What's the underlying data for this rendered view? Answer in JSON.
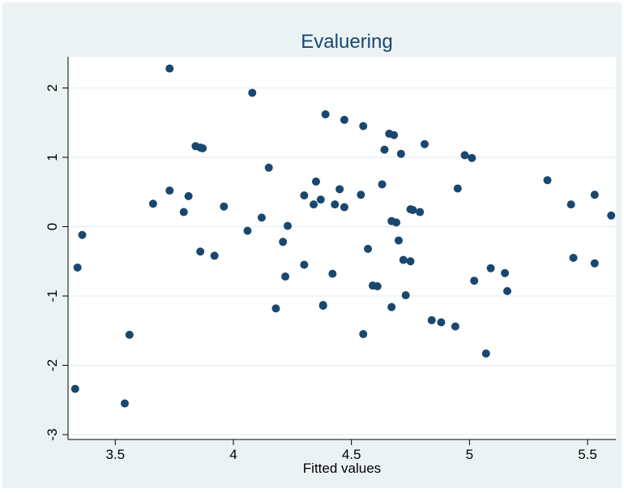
{
  "chart_data": {
    "type": "scatter",
    "title": "Evaluering",
    "xlabel": "Fitted values",
    "ylabel": "",
    "xlim": [
      3.3,
      5.62
    ],
    "ylim": [
      -3.07,
      2.45
    ],
    "xticks": [
      3.5,
      4,
      4.5,
      5,
      5.5
    ],
    "xtick_labels": [
      "3.5",
      "4",
      "4.5",
      "5",
      "5.5"
    ],
    "yticks": [
      -3,
      -2,
      -1,
      0,
      1,
      2
    ],
    "ytick_labels": [
      "-3",
      "-2",
      "-1",
      "0",
      "1",
      "2"
    ],
    "grid": true,
    "legend": "none",
    "colors": {
      "background": "#eaf2f3",
      "plot_background": "#ffffff",
      "marker": "#1a476f",
      "title": "#1a476f",
      "grid": "#eaf2f3"
    },
    "series": [
      {
        "x": [
          3.33,
          3.34,
          3.36,
          3.54,
          3.56,
          3.66,
          3.73,
          3.73,
          3.79,
          3.81,
          3.84,
          3.86,
          3.87,
          3.86,
          3.92,
          3.96,
          4.06,
          4.08,
          4.12,
          4.15,
          4.18,
          4.21,
          4.22,
          4.23,
          4.3,
          4.3,
          4.34,
          4.35,
          4.37,
          4.38,
          4.38,
          4.39,
          4.42,
          4.43,
          4.45,
          4.47,
          4.47,
          4.54,
          4.55,
          4.55,
          4.57,
          4.59,
          4.61,
          4.63,
          4.64,
          4.66,
          4.67,
          4.67,
          4.68,
          4.69,
          4.7,
          4.71,
          4.72,
          4.73,
          4.75,
          4.75,
          4.76,
          4.79,
          4.81,
          4.84,
          4.88,
          4.94,
          4.95,
          4.98,
          5.01,
          5.02,
          5.07,
          5.09,
          5.15,
          5.16,
          5.33,
          5.43,
          5.44,
          5.53,
          5.53,
          5.6
        ],
        "y": [
          -2.34,
          -0.59,
          -0.12,
          -2.55,
          -1.56,
          0.33,
          2.28,
          0.52,
          0.21,
          0.44,
          1.16,
          1.14,
          1.13,
          -0.36,
          -0.42,
          0.29,
          -0.06,
          1.93,
          0.13,
          0.85,
          -1.18,
          -0.22,
          -0.72,
          0.01,
          0.45,
          -0.55,
          0.32,
          0.65,
          0.39,
          -1.13,
          -1.14,
          1.62,
          -0.68,
          0.32,
          0.54,
          0.28,
          1.54,
          0.46,
          1.45,
          -1.55,
          -0.32,
          -0.85,
          -0.86,
          0.61,
          1.11,
          1.34,
          0.08,
          -1.16,
          1.32,
          0.06,
          -0.2,
          1.05,
          -0.48,
          -0.99,
          0.25,
          -0.5,
          0.24,
          0.21,
          1.19,
          -1.35,
          -1.38,
          -1.44,
          0.55,
          1.03,
          0.99,
          -0.78,
          -1.83,
          -0.6,
          -0.67,
          -0.93,
          0.67,
          0.32,
          -0.45,
          0.46,
          -0.53,
          0.16
        ]
      }
    ]
  }
}
